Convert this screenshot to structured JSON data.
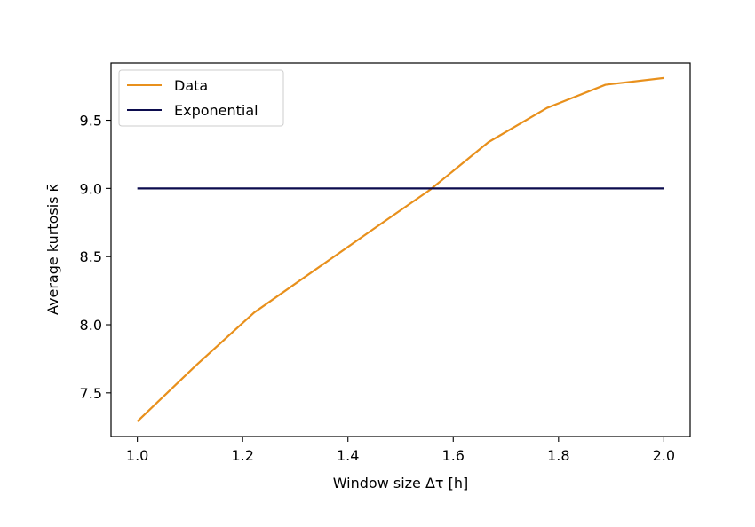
{
  "chart_data": {
    "type": "line",
    "xlabel": "Window size Δτ [h]",
    "ylabel": "Average kurtosis κ̄",
    "xlim": [
      0.95,
      2.05
    ],
    "ylim": [
      7.18,
      9.92
    ],
    "xticks": [
      1.0,
      1.2,
      1.4,
      1.6,
      1.8,
      2.0
    ],
    "xtick_labels": [
      "1.0",
      "1.2",
      "1.4",
      "1.6",
      "1.8",
      "2.0"
    ],
    "yticks": [
      7.5,
      8.0,
      8.5,
      9.0,
      9.5
    ],
    "ytick_labels": [
      "7.5",
      "8.0",
      "8.5",
      "9.0",
      "9.5"
    ],
    "grid": false,
    "legend_position": "top-left",
    "series": [
      {
        "name": "Data",
        "color": "#e8901c",
        "x": [
          1.0,
          1.111,
          1.222,
          1.333,
          1.444,
          1.556,
          1.667,
          1.778,
          1.889,
          2.0
        ],
        "y": [
          7.29,
          7.7,
          8.09,
          8.39,
          8.69,
          8.99,
          9.34,
          9.59,
          9.76,
          9.81
        ]
      },
      {
        "name": "Exponential",
        "color": "#0c0c4e",
        "x": [
          1.0,
          2.0
        ],
        "y": [
          9.0,
          9.0
        ]
      }
    ]
  }
}
